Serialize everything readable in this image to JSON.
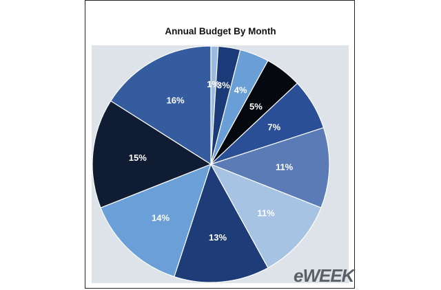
{
  "chart_data": {
    "type": "pie",
    "title": "Annual Budget By Month",
    "values": [
      1,
      3,
      4,
      5,
      7,
      11,
      11,
      13,
      14,
      15,
      16
    ],
    "labels": [
      "1%",
      "3%",
      "4%",
      "5%",
      "7%",
      "11%",
      "11%",
      "13%",
      "14%",
      "15%",
      "16%"
    ],
    "colors": [
      "#9bbbe0",
      "#1b3a78",
      "#6a9ed6",
      "#06080f",
      "#2a4f96",
      "#5b7bb7",
      "#a7c3e3",
      "#1d3c78",
      "#6b9fd8",
      "#0f1c33",
      "#345c9f"
    ],
    "label_colors": [
      "#ffffff",
      "#ffffff",
      "#ffffff",
      "#ffffff",
      "#ffffff",
      "#ffffff",
      "#ffffff",
      "#ffffff",
      "#ffffff",
      "#ffffff",
      "#ffffff"
    ],
    "start_angle_deg": 0,
    "direction": "clockwise"
  },
  "logo": {
    "text": "eWEEK"
  }
}
